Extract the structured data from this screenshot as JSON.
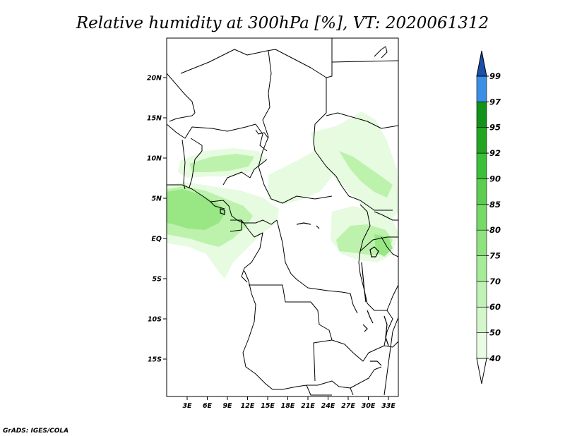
{
  "title": "Relative humidity at 300hPa [%], VT: 2020061312",
  "credit": "GrADS: IGES/COLA",
  "map": {
    "lon_labels": [
      "3E",
      "6E",
      "9E",
      "12E",
      "15E",
      "18E",
      "21E",
      "24E",
      "27E",
      "30E",
      "33E"
    ],
    "lat_labels": [
      "20N",
      "15N",
      "10N",
      "5N",
      "EQ",
      "5S",
      "10S",
      "15S"
    ]
  },
  "colorbar": {
    "labels": [
      "40",
      "50",
      "60",
      "70",
      "75",
      "80",
      "85",
      "90",
      "92",
      "95",
      "97",
      "99"
    ],
    "colors": [
      "#e8fbe3",
      "#d3f7cb",
      "#bff2b4",
      "#a6eb98",
      "#8fe37f",
      "#76da66",
      "#5ccd50",
      "#3cbf3a",
      "#22a622",
      "#11931a",
      "#3b8fe6",
      "#1f66c8",
      "#1b4fa9"
    ]
  },
  "humidity_colors": {
    "light": "#e6fbe0",
    "mid": "#bdf2ad",
    "dark": "#93e580",
    "darker": "#76da66"
  }
}
